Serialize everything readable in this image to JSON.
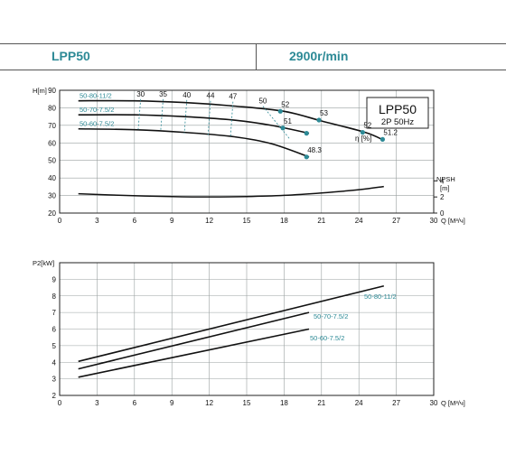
{
  "header": {
    "model": "LPP50",
    "speed": "2900r/min"
  },
  "chart_data": [
    {
      "type": "line",
      "box_title": "LPP50",
      "box_subtitle": "2P  50Hz",
      "ylabel": "H[m]",
      "xlabel": "Q [M³/ч]",
      "x_ticks": [
        0,
        3,
        6,
        9,
        12,
        15,
        18,
        21,
        24,
        27,
        30
      ],
      "xlim": [
        0,
        30
      ],
      "ylim": [
        20,
        90
      ],
      "y_ticks": [
        20,
        30,
        40,
        50,
        60,
        70,
        80,
        90
      ],
      "y2label": "NPSH [m]",
      "y2_ticks": [
        0,
        2,
        4
      ],
      "y2_range": [
        0,
        4.6
      ],
      "eta_label": "η [%]",
      "grid": true,
      "series": [
        {
          "name": "50-80-11/2",
          "x": [
            1.5,
            6,
            10,
            14,
            18,
            21,
            24.5,
            26
          ],
          "y": [
            84,
            84,
            83,
            81,
            78,
            72.5,
            66,
            61.5
          ],
          "efficiency_points": [
            {
              "q": 17.7,
              "h": 78,
              "eta": "52"
            },
            {
              "q": 20.8,
              "h": 73,
              "eta": "53"
            },
            {
              "q": 24.3,
              "h": 66,
              "eta": "52"
            },
            {
              "q": 25.9,
              "h": 62,
              "eta": "51.2"
            }
          ]
        },
        {
          "name": "50-70-7.5/2",
          "x": [
            1.5,
            6,
            10,
            14,
            17,
            20
          ],
          "y": [
            76,
            76,
            75,
            73,
            70,
            65.5
          ],
          "efficiency_points": [
            {
              "q": 17.9,
              "h": 68.5,
              "eta": "51"
            },
            {
              "q": 19.8,
              "h": 65.5,
              "eta": ""
            }
          ]
        },
        {
          "name": "50-60-7.5/2",
          "x": [
            1.5,
            6,
            10,
            14,
            17,
            20
          ],
          "y": [
            68,
            67.5,
            66,
            63.5,
            59.5,
            52
          ],
          "efficiency_points": [
            {
              "q": 19.8,
              "h": 52,
              "eta": "48.3"
            }
          ]
        }
      ],
      "efficiency_labels": [
        {
          "eta": "30",
          "q": 6.5,
          "h": 86.5
        },
        {
          "eta": "35",
          "q": 8.3,
          "h": 86.5
        },
        {
          "eta": "40",
          "q": 10.2,
          "h": 86
        },
        {
          "eta": "44",
          "q": 12.1,
          "h": 85.5
        },
        {
          "eta": "47",
          "q": 13.9,
          "h": 85
        },
        {
          "eta": "50",
          "q": 16.3,
          "h": 82.5
        }
      ],
      "npsh_curve": {
        "x": [
          1.5,
          5,
          9,
          12,
          15,
          18,
          21,
          24,
          26
        ],
        "y": [
          2.4,
          2.2,
          2.05,
          2.0,
          2.05,
          2.2,
          2.5,
          2.9,
          3.3
        ]
      }
    },
    {
      "type": "line",
      "ylabel": "P2[kW]",
      "xlabel": "Q [M³/ч]",
      "x_ticks": [
        0,
        3,
        6,
        9,
        12,
        15,
        18,
        21,
        24,
        27,
        30
      ],
      "xlim": [
        0,
        30
      ],
      "ylim": [
        2,
        10
      ],
      "y_ticks": [
        2,
        3,
        4,
        5,
        6,
        7,
        8,
        9
      ],
      "grid": true,
      "series": [
        {
          "name": "50-80-11/2",
          "x": [
            1.5,
            26
          ],
          "y": [
            4.05,
            8.6
          ]
        },
        {
          "name": "50-70-7.5/2",
          "x": [
            1.5,
            20
          ],
          "y": [
            3.6,
            7.0
          ]
        },
        {
          "name": "50-60-7.5/2",
          "x": [
            1.5,
            20
          ],
          "y": [
            3.1,
            6.0
          ]
        }
      ]
    }
  ],
  "colors": {
    "accent": "#2d8a96",
    "curve": "#111111",
    "grid": "#9aa0a0"
  }
}
